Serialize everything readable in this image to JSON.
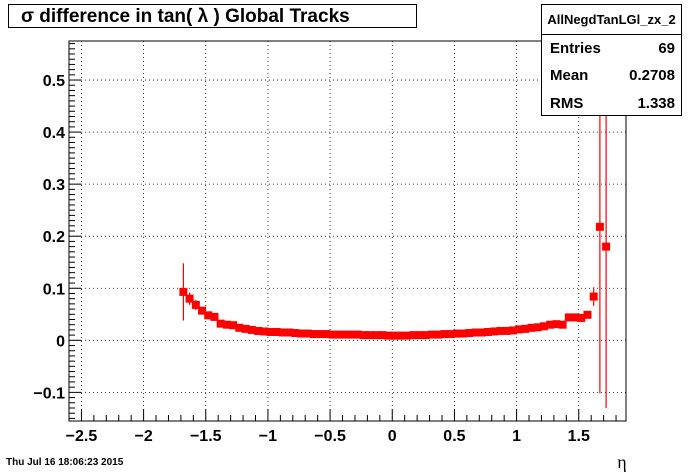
{
  "chart_data": {
    "type": "scatter",
    "title": "σ difference in tan( λ )  Global Tracks",
    "xlabel": "η",
    "ylabel": "",
    "xlim": [
      -2.6,
      1.88
    ],
    "ylim": [
      -0.155,
      0.575
    ],
    "xticks": [
      -2.5,
      -2,
      -1.5,
      -1,
      -0.5,
      0,
      0.5,
      1,
      1.5
    ],
    "xtick_labels": [
      "−2.5",
      "−2",
      "−1.5",
      "−1",
      "−0.5",
      "0",
      "0.5",
      "1",
      "1.5"
    ],
    "yticks": [
      -0.1,
      0,
      0.1,
      0.2,
      0.3,
      0.4,
      0.5
    ],
    "ytick_labels": [
      "−0.1",
      "0",
      "0.1",
      "0.2",
      "0.3",
      "0.4",
      "0.5"
    ],
    "grid": true,
    "marker_color": "#ff0000",
    "x": [
      -1.68,
      -1.63,
      -1.58,
      -1.53,
      -1.48,
      -1.43,
      -1.38,
      -1.33,
      -1.28,
      -1.23,
      -1.18,
      -1.13,
      -1.08,
      -1.03,
      -0.98,
      -0.93,
      -0.88,
      -0.83,
      -0.78,
      -0.73,
      -0.68,
      -0.63,
      -0.58,
      -0.53,
      -0.48,
      -0.43,
      -0.38,
      -0.33,
      -0.28,
      -0.23,
      -0.18,
      -0.13,
      -0.08,
      -0.03,
      0.02,
      0.07,
      0.12,
      0.17,
      0.22,
      0.27,
      0.32,
      0.37,
      0.42,
      0.47,
      0.52,
      0.57,
      0.62,
      0.67,
      0.72,
      0.77,
      0.82,
      0.87,
      0.92,
      0.97,
      1.02,
      1.07,
      1.12,
      1.17,
      1.22,
      1.27,
      1.32,
      1.37,
      1.42,
      1.47,
      1.52,
      1.57,
      1.62,
      1.67,
      1.72
    ],
    "y": [
      0.093,
      0.08,
      0.068,
      0.057,
      0.048,
      0.045,
      0.032,
      0.03,
      0.029,
      0.024,
      0.022,
      0.02,
      0.018,
      0.017,
      0.016,
      0.016,
      0.015,
      0.015,
      0.014,
      0.013,
      0.013,
      0.012,
      0.012,
      0.012,
      0.011,
      0.011,
      0.011,
      0.011,
      0.011,
      0.01,
      0.01,
      0.01,
      0.01,
      0.009,
      0.009,
      0.009,
      0.009,
      0.01,
      0.01,
      0.01,
      0.011,
      0.011,
      0.012,
      0.012,
      0.013,
      0.013,
      0.014,
      0.015,
      0.015,
      0.016,
      0.017,
      0.018,
      0.018,
      0.019,
      0.021,
      0.022,
      0.024,
      0.025,
      0.027,
      0.03,
      0.031,
      0.03,
      0.044,
      0.044,
      0.043,
      0.049,
      0.084,
      0.218,
      0.18
    ],
    "yerr": [
      0.055,
      0.012,
      0.01,
      0,
      0,
      0,
      0,
      0,
      0,
      0,
      0,
      0,
      0,
      0,
      0,
      0,
      0,
      0,
      0,
      0,
      0,
      0,
      0,
      0,
      0,
      0,
      0,
      0,
      0,
      0,
      0,
      0,
      0,
      0,
      0,
      0,
      0,
      0,
      0,
      0,
      0,
      0,
      0,
      0,
      0,
      0,
      0,
      0,
      0,
      0,
      0,
      0,
      0,
      0,
      0,
      0,
      0,
      0,
      0,
      0,
      0,
      0,
      0,
      0,
      0,
      0,
      0.018,
      0.32,
      0.31
    ]
  },
  "stats": {
    "name": "AllNegdTanLGl_zx_2",
    "entries_label": "Entries",
    "entries_value": "69",
    "mean_label": "Mean",
    "mean_value": "0.2708",
    "rms_label": "RMS",
    "rms_value": "1.338"
  },
  "footer": {
    "date": "Thu Jul 16 18:06:23 2015"
  }
}
